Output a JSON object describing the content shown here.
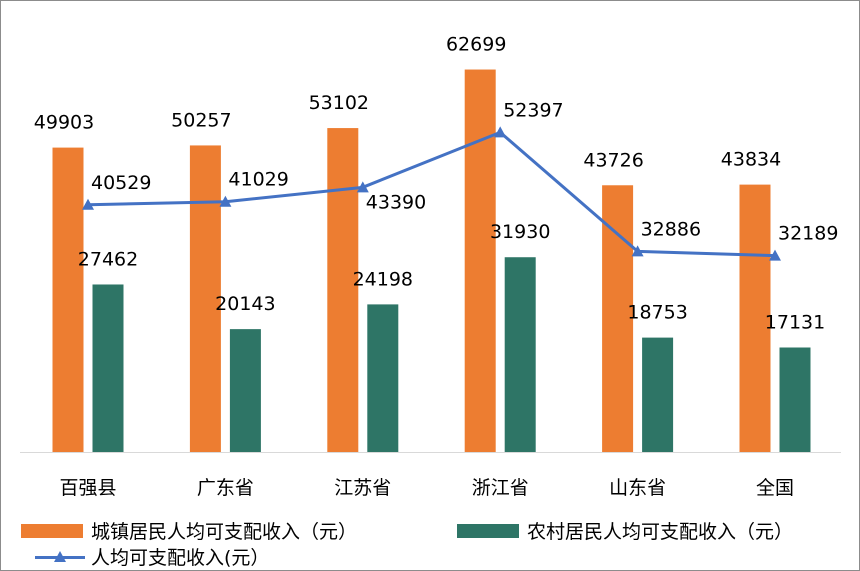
{
  "chart_data": {
    "type": "bar",
    "categories": [
      "百强县",
      "广东省",
      "江苏省",
      "浙江省",
      "山东省",
      "全国"
    ],
    "series": [
      {
        "name": "城镇居民人均可支配收入（元）",
        "kind": "bar",
        "color": "#ed7d31",
        "values": [
          49903,
          50257,
          53102,
          62699,
          43726,
          43834
        ]
      },
      {
        "name": "农村居民人均可支配收入（元）",
        "kind": "bar",
        "color": "#2e7566",
        "values": [
          27462,
          20143,
          24198,
          31930,
          18753,
          17131
        ]
      },
      {
        "name": "人均可支配收入(元）",
        "kind": "line",
        "color": "#4472c4",
        "values": [
          40529,
          41029,
          43390,
          52397,
          32886,
          32189
        ]
      }
    ],
    "ylim": [
      0,
      70000
    ],
    "grid": false,
    "legend_position": "bottom"
  },
  "legend": {
    "urban": "城镇居民人均可支配收入（元）",
    "rural": "农村居民人均可支配收入（元）",
    "avg": "人均可支配收入(元）"
  }
}
